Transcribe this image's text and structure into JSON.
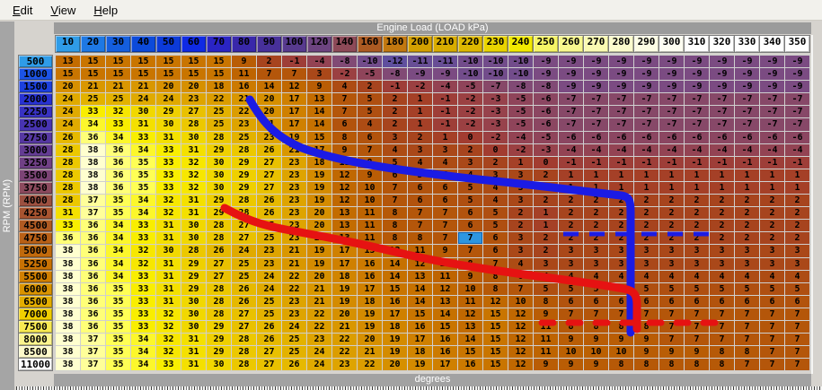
{
  "menu": {
    "items": [
      {
        "label": "Edit"
      },
      {
        "label": "View"
      },
      {
        "label": "Help"
      }
    ]
  },
  "axis": {
    "x_title": "Engine Load (LOAD kPa)",
    "y_title": "RPM (RPM)",
    "unit_label": "degrees",
    "x_values": [
      10,
      20,
      30,
      40,
      50,
      60,
      70,
      80,
      90,
      100,
      120,
      140,
      160,
      180,
      200,
      210,
      220,
      230,
      240,
      250,
      260,
      270,
      280,
      290,
      300,
      310,
      320,
      330,
      340,
      350
    ],
    "y_values": [
      500,
      1000,
      1500,
      2000,
      2250,
      2500,
      2750,
      3000,
      3250,
      3500,
      3750,
      4000,
      4250,
      4500,
      4750,
      5000,
      5250,
      5500,
      6000,
      6500,
      7000,
      7500,
      8000,
      8500,
      11000
    ]
  },
  "table": {
    "selected_cell": {
      "row_rpm": 4750,
      "col_load": 220,
      "value": 7
    },
    "values": [
      [
        13,
        15,
        15,
        15,
        15,
        15,
        15,
        9,
        2,
        -1,
        -4,
        -8,
        -10,
        -12,
        -11,
        -11,
        -10,
        -10,
        -10,
        -9,
        -9,
        -9,
        -9,
        -9,
        -9,
        -9,
        -9,
        -9,
        -9,
        -9
      ],
      [
        15,
        15,
        15,
        15,
        15,
        15,
        15,
        11,
        7,
        7,
        3,
        -2,
        -5,
        -8,
        -9,
        -9,
        -10,
        -10,
        -10,
        -9,
        -9,
        -9,
        -9,
        -9,
        -9,
        -9,
        -9,
        -9,
        -9,
        -9
      ],
      [
        20,
        21,
        21,
        21,
        20,
        20,
        18,
        16,
        14,
        12,
        9,
        4,
        2,
        -1,
        -2,
        -4,
        -5,
        -7,
        -8,
        -8,
        -9,
        -9,
        -9,
        -9,
        -9,
        -9,
        -9,
        -9,
        -9,
        -9
      ],
      [
        24,
        25,
        25,
        24,
        24,
        23,
        22,
        21,
        20,
        17,
        13,
        7,
        5,
        2,
        1,
        -1,
        -2,
        -3,
        -5,
        -6,
        -7,
        -7,
        -7,
        -7,
        -7,
        -7,
        -7,
        -7,
        -7,
        -7
      ],
      [
        24,
        33,
        32,
        30,
        29,
        27,
        25,
        22,
        20,
        17,
        14,
        7,
        5,
        2,
        1,
        -1,
        -2,
        -3,
        -5,
        -6,
        -7,
        -7,
        -7,
        -7,
        -7,
        -7,
        -7,
        -7,
        -7,
        -7
      ],
      [
        24,
        34,
        33,
        31,
        30,
        28,
        25,
        23,
        21,
        17,
        14,
        6,
        4,
        2,
        1,
        -1,
        -2,
        -3,
        -5,
        -6,
        -7,
        -7,
        -7,
        -7,
        -7,
        -7,
        -7,
        -7,
        -7,
        -7
      ],
      [
        26,
        36,
        34,
        33,
        31,
        30,
        28,
        25,
        23,
        19,
        15,
        8,
        6,
        3,
        2,
        1,
        0,
        -2,
        -4,
        -5,
        -6,
        -6,
        -6,
        -6,
        -6,
        -6,
        -6,
        -6,
        -6,
        -6
      ],
      [
        28,
        38,
        36,
        34,
        33,
        31,
        29,
        28,
        26,
        21,
        17,
        9,
        7,
        4,
        3,
        3,
        2,
        0,
        -2,
        -3,
        -4,
        -4,
        -4,
        -4,
        -4,
        -4,
        -4,
        -4,
        -4,
        -4
      ],
      [
        28,
        38,
        36,
        35,
        33,
        32,
        30,
        29,
        27,
        23,
        18,
        11,
        8,
        5,
        4,
        4,
        3,
        2,
        1,
        0,
        -1,
        -1,
        -1,
        -1,
        -1,
        -1,
        -1,
        -1,
        -1,
        -1
      ],
      [
        28,
        38,
        36,
        35,
        33,
        32,
        30,
        29,
        27,
        23,
        19,
        12,
        9,
        6,
        5,
        5,
        4,
        3,
        3,
        2,
        1,
        1,
        1,
        1,
        1,
        1,
        1,
        1,
        1,
        1
      ],
      [
        28,
        38,
        36,
        35,
        33,
        32,
        30,
        29,
        27,
        23,
        19,
        12,
        10,
        7,
        6,
        6,
        5,
        4,
        3,
        2,
        1,
        1,
        1,
        1,
        1,
        1,
        1,
        1,
        1,
        1
      ],
      [
        28,
        37,
        35,
        34,
        32,
        31,
        29,
        28,
        26,
        23,
        19,
        12,
        10,
        7,
        6,
        6,
        5,
        4,
        3,
        2,
        2,
        2,
        2,
        2,
        2,
        2,
        2,
        2,
        2,
        2
      ],
      [
        31,
        37,
        35,
        34,
        32,
        31,
        29,
        28,
        26,
        23,
        20,
        13,
        11,
        8,
        7,
        7,
        6,
        5,
        2,
        1,
        2,
        2,
        2,
        2,
        2,
        2,
        2,
        2,
        2,
        2
      ],
      [
        33,
        36,
        34,
        33,
        31,
        30,
        28,
        27,
        25,
        23,
        20,
        13,
        11,
        8,
        7,
        7,
        6,
        5,
        2,
        1,
        2,
        2,
        2,
        2,
        2,
        2,
        2,
        2,
        2,
        2
      ],
      [
        36,
        36,
        34,
        33,
        31,
        30,
        28,
        27,
        25,
        23,
        19,
        13,
        11,
        8,
        8,
        7,
        7,
        6,
        3,
        2,
        2,
        2,
        2,
        2,
        2,
        2,
        2,
        2,
        2,
        2
      ],
      [
        38,
        36,
        34,
        32,
        30,
        28,
        26,
        24,
        23,
        21,
        19,
        17,
        15,
        13,
        11,
        9,
        7,
        6,
        3,
        2,
        3,
        3,
        3,
        3,
        3,
        3,
        3,
        3,
        3,
        3
      ],
      [
        38,
        36,
        34,
        32,
        31,
        29,
        27,
        25,
        23,
        21,
        19,
        17,
        16,
        14,
        12,
        10,
        8,
        7,
        4,
        3,
        3,
        3,
        3,
        3,
        3,
        3,
        3,
        3,
        3,
        3
      ],
      [
        38,
        36,
        34,
        33,
        31,
        29,
        27,
        25,
        24,
        22,
        20,
        18,
        16,
        14,
        13,
        11,
        9,
        8,
        6,
        4,
        4,
        4,
        4,
        4,
        4,
        4,
        4,
        4,
        4,
        4
      ],
      [
        38,
        36,
        35,
        33,
        31,
        29,
        28,
        26,
        24,
        22,
        21,
        19,
        17,
        15,
        14,
        12,
        10,
        8,
        7,
        5,
        5,
        5,
        5,
        5,
        5,
        5,
        5,
        5,
        5,
        5
      ],
      [
        38,
        36,
        35,
        33,
        31,
        30,
        28,
        26,
        25,
        23,
        21,
        19,
        18,
        16,
        14,
        13,
        11,
        12,
        10,
        8,
        6,
        6,
        6,
        6,
        6,
        6,
        6,
        6,
        6,
        6
      ],
      [
        38,
        36,
        35,
        33,
        32,
        30,
        28,
        27,
        25,
        23,
        22,
        20,
        19,
        17,
        15,
        14,
        12,
        15,
        12,
        9,
        7,
        7,
        7,
        7,
        7,
        7,
        7,
        7,
        7,
        7
      ],
      [
        38,
        36,
        35,
        33,
        32,
        30,
        29,
        27,
        26,
        24,
        22,
        21,
        19,
        18,
        16,
        15,
        13,
        15,
        12,
        11,
        8,
        8,
        8,
        8,
        7,
        7,
        7,
        7,
        7,
        7
      ],
      [
        38,
        37,
        35,
        34,
        32,
        31,
        29,
        28,
        26,
        25,
        23,
        22,
        20,
        19,
        17,
        16,
        14,
        15,
        12,
        11,
        9,
        9,
        9,
        9,
        7,
        7,
        7,
        7,
        7,
        7
      ],
      [
        38,
        37,
        35,
        34,
        32,
        31,
        29,
        28,
        27,
        25,
        24,
        22,
        21,
        19,
        18,
        16,
        15,
        15,
        12,
        11,
        10,
        10,
        10,
        9,
        9,
        9,
        8,
        8,
        7,
        7
      ],
      [
        38,
        37,
        35,
        34,
        33,
        31,
        30,
        28,
        27,
        26,
        24,
        23,
        22,
        20,
        19,
        17,
        16,
        15,
        12,
        9,
        9,
        9,
        8,
        8,
        8,
        8,
        8,
        7,
        7,
        7
      ]
    ]
  },
  "colors": {
    "selected_bg": "#2e96e0",
    "blue_line": "#1b1be4",
    "red_line": "#e61212",
    "value_gradient": [
      [
        -12,
        "#5f4f9e"
      ],
      [
        -9,
        "#7b4b82"
      ],
      [
        -7,
        "#874868"
      ],
      [
        -5,
        "#8f445a"
      ],
      [
        -3,
        "#97424c"
      ],
      [
        -1,
        "#9e3e38"
      ],
      [
        0,
        "#a23c30"
      ],
      [
        2,
        "#a7441e"
      ],
      [
        4,
        "#ad4c14"
      ],
      [
        7,
        "#b4560a"
      ],
      [
        10,
        "#bb6002"
      ],
      [
        13,
        "#c36c00"
      ],
      [
        16,
        "#cc7a00"
      ],
      [
        20,
        "#d69000"
      ],
      [
        24,
        "#e0aa00"
      ],
      [
        28,
        "#ecc800"
      ],
      [
        31,
        "#f4e000"
      ],
      [
        33,
        "#f9ee00"
      ],
      [
        35,
        "#ffff55"
      ],
      [
        37,
        "#ffff9a"
      ],
      [
        38,
        "#ffffcf"
      ]
    ],
    "x_header_colors": [
      "#2f9ce8",
      "#1e78e4",
      "#145ede",
      "#0c4ada",
      "#0c3ad8",
      "#0f2ae4",
      "#2a24c4",
      "#3928aa",
      "#47309a",
      "#573a8e",
      "#6d4480",
      "#8d4a58",
      "#ab5a22",
      "#c27810",
      "#d3a000",
      "#d8ac00",
      "#ddb800",
      "#e9d400",
      "#f2ea00",
      "#f6f566",
      "#f8f88e",
      "#fafab2",
      "#fcfccd",
      "#fdfde5",
      "#fefef2",
      "#ffffff",
      "#ffffff",
      "#ffffff",
      "#ffffff",
      "#ffffff"
    ],
    "y_header_colors": [
      "#2f9ce8",
      "#1c54e6",
      "#1c40de",
      "#2832d2",
      "#3832c2",
      "#4834b2",
      "#5638a2",
      "#643c94",
      "#704086",
      "#7c4476",
      "#8c4a5e",
      "#9c5040",
      "#a85430",
      "#b05a22",
      "#b96016",
      "#c16a0c",
      "#c97204",
      "#d18000",
      "#da9400",
      "#e4ae00",
      "#f0ce00",
      "#f8ea52",
      "#fcf48e",
      "#fefac9",
      "#ffffff"
    ]
  }
}
